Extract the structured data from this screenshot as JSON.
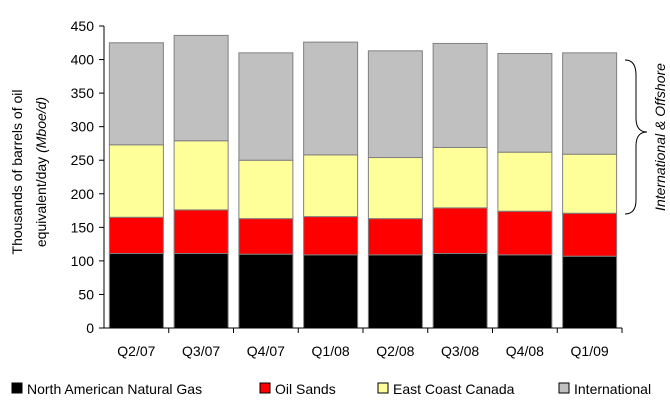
{
  "chart_data": {
    "type": "bar",
    "stacked": true,
    "categories": [
      "Q2/07",
      "Q3/07",
      "Q4/07",
      "Q1/08",
      "Q2/08",
      "Q3/08",
      "Q4/08",
      "Q1/09"
    ],
    "series": [
      {
        "name": "North American Natural Gas",
        "color": "#000000",
        "values": [
          111,
          111,
          110,
          109,
          109,
          111,
          109,
          107
        ]
      },
      {
        "name": "Oil Sands",
        "color": "#ff0000",
        "values": [
          54,
          65,
          53,
          57,
          54,
          68,
          65,
          64
        ]
      },
      {
        "name": "East Coast Canada",
        "color": "#ffff99",
        "values": [
          108,
          103,
          87,
          92,
          91,
          90,
          88,
          88
        ]
      },
      {
        "name": "International",
        "color": "#c0c0c0",
        "values": [
          152,
          157,
          160,
          168,
          159,
          155,
          147,
          151
        ]
      }
    ],
    "ylabel_line1": "Thousands of barrels of oil",
    "ylabel_line2": "equivalent/day ",
    "ylabel_unit": "(Mboe/d)",
    "ylim": [
      0,
      450
    ],
    "yticks": [
      0,
      50,
      100,
      150,
      200,
      250,
      300,
      350,
      400,
      450
    ],
    "grid": false,
    "legend_position": "bottom",
    "annotation": "International & Offshore",
    "bar_outline_color": "#808080"
  }
}
